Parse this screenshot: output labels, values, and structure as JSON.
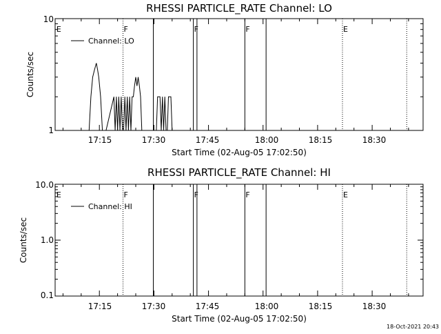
{
  "panels": [
    {
      "title": "RHESSI PARTICLE_RATE Channel: LO",
      "ylabel": "Counts/sec",
      "xlabel": "Start Time (02-Aug-05 17:02:50)",
      "legend": "Channel: LO",
      "ytick_labels": [
        "10",
        "1"
      ]
    },
    {
      "title": "RHESSI PARTICLE_RATE Channel: HI",
      "ylabel": "Counts/sec",
      "xlabel": "Start Time (02-Aug-05 17:02:50)",
      "legend": "Channel: HI",
      "ytick_labels": [
        "10.0",
        "1.0",
        "0.1"
      ]
    }
  ],
  "xtick_labels": [
    "17:15",
    "17:30",
    "17:45",
    "18:00",
    "18:15",
    "18:30"
  ],
  "timestamp": "18-Oct-2021 20:43",
  "chart_data": [
    {
      "type": "line",
      "title": "RHESSI PARTICLE_RATE Channel: LO",
      "xlabel": "Start Time (02-Aug-05 17:02:50)",
      "ylabel": "Counts/sec",
      "y_scale": "log",
      "ylim": [
        1,
        10
      ],
      "xlim": [
        "17:02:50",
        "18:44"
      ],
      "xticks": [
        "17:15",
        "17:30",
        "17:45",
        "18:00",
        "18:15",
        "18:30"
      ],
      "legend_position": "top-left",
      "series": [
        {
          "name": "Channel: LO",
          "x": [
            "17:12:10",
            "17:12:40",
            "17:13:10",
            "17:13:40",
            "17:14:10",
            "17:14:30",
            "17:14:50",
            "17:15:20",
            "17:15:50",
            "17:16:20",
            "17:16:50",
            "17:19:00",
            "17:19:20",
            "17:19:40",
            "17:20:00",
            "17:20:20",
            "17:20:40",
            "17:21:00",
            "17:21:20",
            "17:21:40",
            "17:22:00",
            "17:22:20",
            "17:22:40",
            "17:23:00",
            "17:23:20",
            "17:23:40",
            "17:24:00",
            "17:24:20",
            "17:24:40",
            "17:25:00",
            "17:25:20",
            "17:25:40",
            "17:26:00",
            "17:26:20",
            "17:26:40",
            "17:27:00",
            "17:30:40",
            "17:31:00",
            "17:31:20",
            "17:31:40",
            "17:32:00",
            "17:32:20",
            "17:32:40",
            "17:33:00",
            "17:33:20",
            "17:33:40",
            "17:34:00",
            "17:34:20",
            "17:34:40",
            "17:35:00",
            "17:35:20"
          ],
          "y": [
            1,
            2,
            3,
            3.5,
            4,
            3.5,
            3,
            2,
            1,
            1,
            1,
            2,
            1,
            2,
            1,
            2,
            1,
            2,
            1,
            1,
            2,
            1,
            2,
            1,
            2,
            1,
            2,
            2,
            2.5,
            3,
            2.5,
            3,
            2.5,
            2,
            1,
            1,
            1,
            2,
            2,
            2,
            1,
            2,
            1,
            2,
            1,
            1,
            2,
            2,
            2,
            1,
            1
          ]
        }
      ],
      "event_markers": [
        {
          "time": "17:03:00",
          "label": "E",
          "style": "none"
        },
        {
          "time": "17:21:30",
          "label": "F",
          "style": "dotted"
        },
        {
          "time": "17:29:50",
          "label": "",
          "style": "solid"
        },
        {
          "time": "17:40:50",
          "label": "F",
          "style": "solid"
        },
        {
          "time": "17:41:50",
          "label": "",
          "style": "solid"
        },
        {
          "time": "17:55:00",
          "label": "F",
          "style": "solid"
        },
        {
          "time": "18:00:50",
          "label": "",
          "style": "solid"
        },
        {
          "time": "18:21:50",
          "label": "E",
          "style": "dotted"
        },
        {
          "time": "18:39:30",
          "label": "",
          "style": "dotted"
        }
      ]
    },
    {
      "type": "line",
      "title": "RHESSI PARTICLE_RATE Channel: HI",
      "xlabel": "Start Time (02-Aug-05 17:02:50)",
      "ylabel": "Counts/sec",
      "y_scale": "log",
      "ylim": [
        0.1,
        10
      ],
      "xlim": [
        "17:02:50",
        "18:44"
      ],
      "xticks": [
        "17:15",
        "17:30",
        "17:45",
        "18:00",
        "18:15",
        "18:30"
      ],
      "legend_position": "top-left",
      "series": [
        {
          "name": "Channel: HI",
          "x": [],
          "y": []
        }
      ],
      "event_markers": [
        {
          "time": "17:03:00",
          "label": "E",
          "style": "none"
        },
        {
          "time": "17:21:30",
          "label": "F",
          "style": "dotted"
        },
        {
          "time": "17:29:50",
          "label": "",
          "style": "solid"
        },
        {
          "time": "17:40:50",
          "label": "F",
          "style": "solid"
        },
        {
          "time": "17:41:50",
          "label": "",
          "style": "solid"
        },
        {
          "time": "17:55:00",
          "label": "F",
          "style": "solid"
        },
        {
          "time": "18:00:50",
          "label": "",
          "style": "solid"
        },
        {
          "time": "18:21:50",
          "label": "E",
          "style": "dotted"
        },
        {
          "time": "18:39:30",
          "label": "",
          "style": "dotted"
        }
      ]
    }
  ]
}
